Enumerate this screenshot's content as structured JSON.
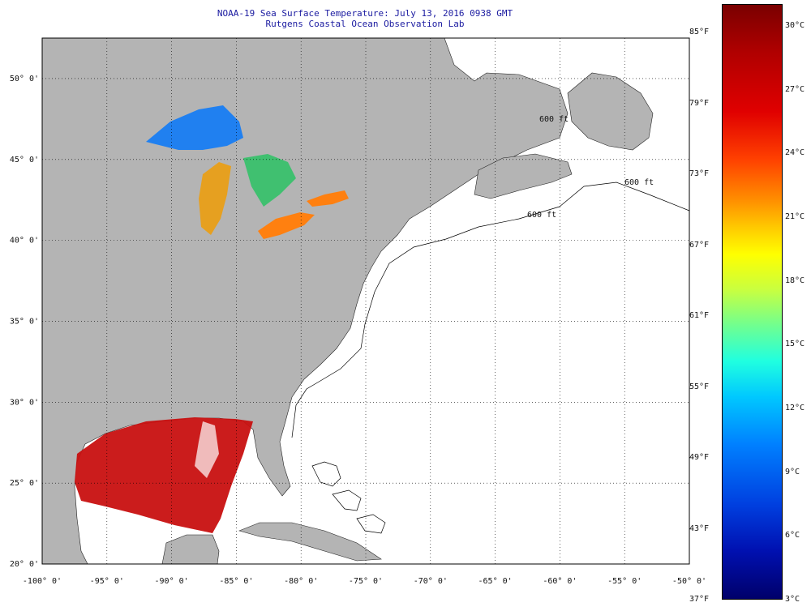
{
  "header": {
    "title_line1": "NOAA-19 Sea Surface Temperature:  July 13, 2016 0938 GMT",
    "title_line2": "Rutgens Coastal Ocean Observation Lab"
  },
  "map": {
    "lat_ticks": [
      {
        "value": 50,
        "label": "50° 0'"
      },
      {
        "value": 45,
        "label": "45° 0'"
      },
      {
        "value": 40,
        "label": "40° 0'"
      },
      {
        "value": 35,
        "label": "35° 0'"
      },
      {
        "value": 30,
        "label": "30° 0'"
      },
      {
        "value": 25,
        "label": "25° 0'"
      },
      {
        "value": 20,
        "label": "20° 0'"
      }
    ],
    "lon_ticks": [
      {
        "value": -100,
        "label": "-100° 0'"
      },
      {
        "value": -95,
        "label": "-95° 0'"
      },
      {
        "value": -90,
        "label": "-90° 0'"
      },
      {
        "value": -85,
        "label": "-85° 0'"
      },
      {
        "value": -80,
        "label": "-80° 0'"
      },
      {
        "value": -75,
        "label": "-75° 0'"
      },
      {
        "value": -70,
        "label": "-70° 0'"
      },
      {
        "value": -65,
        "label": "-65° 0'"
      },
      {
        "value": -60,
        "label": "-60° 0'"
      },
      {
        "value": -55,
        "label": "-55° 0'"
      },
      {
        "value": -50,
        "label": "-50° 0'"
      }
    ],
    "colors": {
      "land": "#b4b4b4",
      "ocean": "#ffffff",
      "warm_sst": "#c81010",
      "cold_sst": "#2080f0"
    },
    "contour_labels": [
      "600 ft",
      "600 ft",
      "600 ft"
    ]
  },
  "colorbar": {
    "fahrenheit_labels": [
      "85°F",
      "79°F",
      "73°F",
      "67°F",
      "61°F",
      "55°F",
      "49°F",
      "43°F",
      "37°F"
    ],
    "celsius_labels": [
      "30°C",
      "27°C",
      "24°C",
      "21°C",
      "18°C",
      "15°C",
      "12°C",
      "9°C",
      "6°C",
      "3°C"
    ]
  }
}
